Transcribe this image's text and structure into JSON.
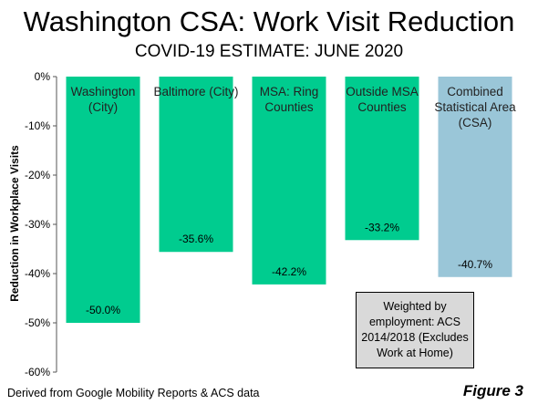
{
  "title": "Washington CSA: Work Visit Reduction",
  "subtitle": "COVID-19 ESTIMATE: JUNE 2020",
  "source": "Derived from Google Mobility Reports & ACS data",
  "figure_label": "Figure 3",
  "note": "Weighted by employment: ACS 2014/2018 (Excludes Work at Home)",
  "colors": {
    "green": "#00cc8f",
    "blue": "#9ac6d8"
  },
  "chart_data": {
    "type": "bar",
    "title": "Washington CSA: Work Visit Reduction",
    "subtitle": "COVID-19 ESTIMATE: JUNE 2020",
    "ylabel": "Reduction in Workplace Visits",
    "xlabel": "",
    "ylim": [
      -60,
      0
    ],
    "yticks": [
      0,
      -10,
      -20,
      -30,
      -40,
      -50,
      -60
    ],
    "ytick_labels": [
      "0%",
      "-10%",
      "-20%",
      "-30%",
      "-40%",
      "-50%",
      "-60%"
    ],
    "grid": false,
    "categories": [
      [
        "Washington",
        "(City)"
      ],
      [
        "Baltimore (City)"
      ],
      [
        "MSA: Ring",
        "Counties"
      ],
      [
        "Outside MSA",
        "Counties"
      ],
      [
        "Combined",
        "Statistical Area",
        "(CSA)"
      ]
    ],
    "values": [
      -50.0,
      -35.6,
      -42.2,
      -33.2,
      -40.7
    ],
    "data_labels": [
      "-50.0%",
      "-35.6%",
      "-42.2%",
      "-33.2%",
      "-40.7%"
    ],
    "bar_colors": [
      "#00cc8f",
      "#00cc8f",
      "#00cc8f",
      "#00cc8f",
      "#9ac6d8"
    ]
  }
}
